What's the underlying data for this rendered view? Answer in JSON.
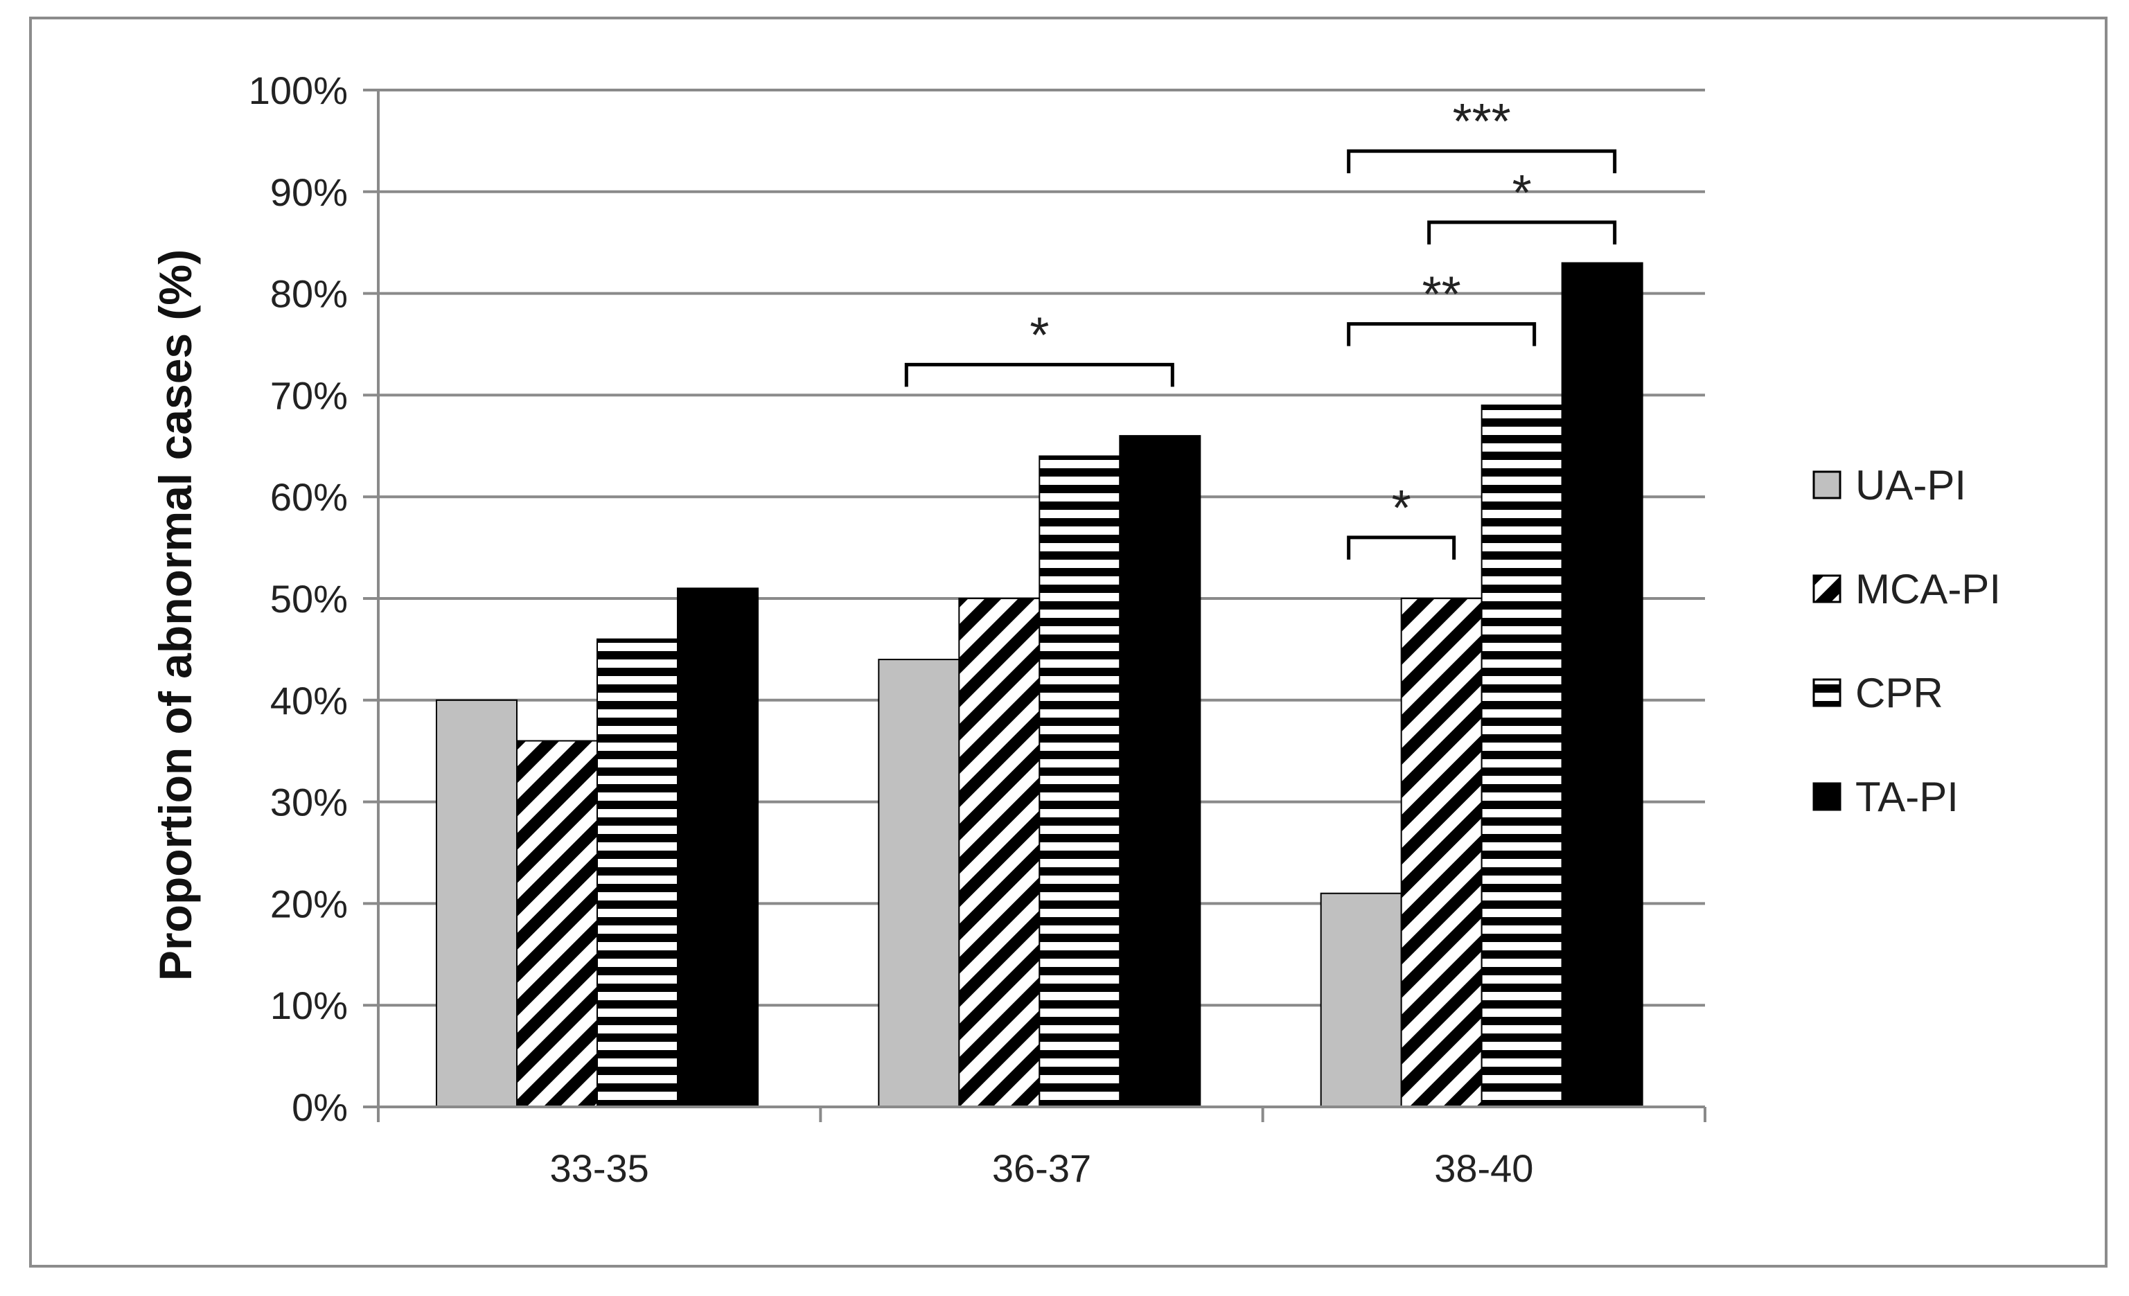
{
  "chart_data": {
    "type": "bar",
    "title": "",
    "xlabel": "",
    "ylabel": "Proportion of abnormal cases (%)",
    "categories": [
      "33-35",
      "36-37",
      "38-40"
    ],
    "series": [
      {
        "name": "UA-PI",
        "values": [
          40,
          44,
          21
        ],
        "color": "#c0c0c0",
        "pattern": "solid-gray"
      },
      {
        "name": "MCA-PI",
        "values": [
          36,
          50,
          50
        ],
        "color": "#000000",
        "pattern": "diagonal-stripes"
      },
      {
        "name": "CPR",
        "values": [
          46,
          64,
          69
        ],
        "color": "#000000",
        "pattern": "horizontal-stripes"
      },
      {
        "name": "TA-PI",
        "values": [
          51,
          66,
          83
        ],
        "color": "#000000",
        "pattern": "solid-black"
      }
    ],
    "yticks": [
      "0%",
      "10%",
      "20%",
      "30%",
      "40%",
      "50%",
      "60%",
      "70%",
      "80%",
      "90%",
      "100%"
    ],
    "ylim": [
      0,
      100
    ],
    "grid": true,
    "legend_position": "right",
    "significance": [
      {
        "category": "36-37",
        "from_series": 0,
        "to_series": 3,
        "level": 73,
        "label": "*"
      },
      {
        "category": "38-40",
        "from_series": 0,
        "to_series": 1,
        "level": 56,
        "label": "*"
      },
      {
        "category": "38-40",
        "from_series": 0,
        "to_series": 2,
        "level": 77,
        "label": "**"
      },
      {
        "category": "38-40",
        "from_series": 1,
        "to_series": 3,
        "level": 87,
        "label": "*"
      },
      {
        "category": "38-40",
        "from_series": 0,
        "to_series": 3,
        "level": 94,
        "label": "***"
      }
    ]
  }
}
